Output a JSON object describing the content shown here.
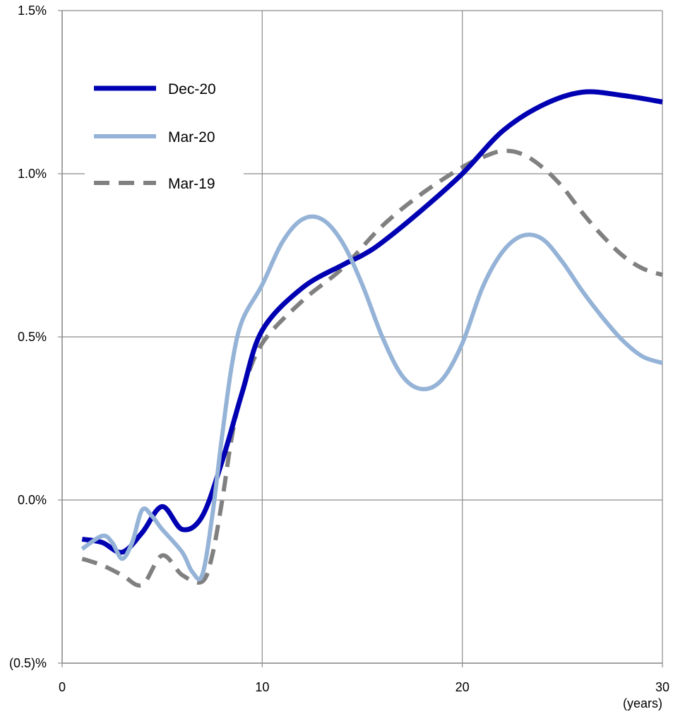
{
  "chart_data": {
    "type": "line",
    "title": "",
    "xlabel": "(years)",
    "ylabel": "",
    "xlim": [
      0,
      30
    ],
    "ylim": [
      -0.5,
      1.5
    ],
    "x_ticks": [
      0,
      10,
      20,
      30
    ],
    "x_tick_labels": [
      "0",
      "10",
      "20",
      "30"
    ],
    "y_ticks": [
      1.5,
      1.0,
      0.5,
      0.0,
      -0.5
    ],
    "y_tick_labels": [
      "1.5%",
      "1.0%",
      "0.5%",
      "0.0%",
      "(0.5)%"
    ],
    "grid": true,
    "legend_position": "top-left",
    "series": [
      {
        "name": "Dec-20",
        "color": "#0000b3",
        "line_style": "solid",
        "x": [
          1,
          2,
          3,
          4,
          5,
          6,
          7,
          8,
          9,
          10,
          12,
          14,
          15,
          16,
          18,
          20,
          22,
          24,
          26,
          28,
          30
        ],
        "y": [
          -0.12,
          -0.13,
          -0.16,
          -0.1,
          -0.02,
          -0.09,
          -0.05,
          0.12,
          0.33,
          0.52,
          0.65,
          0.72,
          0.75,
          0.79,
          0.89,
          1.0,
          1.13,
          1.21,
          1.25,
          1.24,
          1.22
        ]
      },
      {
        "name": "Mar-20",
        "color": "#95b3d7",
        "line_style": "solid",
        "x": [
          1,
          2,
          2.5,
          3,
          3.5,
          4,
          4.5,
          5,
          6,
          6.5,
          7,
          7.5,
          8,
          8.5,
          9,
          10,
          11,
          12,
          13,
          14,
          15,
          16,
          17,
          18,
          19,
          20,
          21,
          22,
          23,
          24,
          25,
          26,
          27,
          28,
          29,
          30
        ],
        "y": [
          -0.15,
          -0.11,
          -0.13,
          -0.18,
          -0.13,
          -0.03,
          -0.05,
          -0.09,
          -0.16,
          -0.22,
          -0.23,
          -0.05,
          0.2,
          0.42,
          0.55,
          0.66,
          0.79,
          0.86,
          0.86,
          0.79,
          0.66,
          0.5,
          0.38,
          0.34,
          0.37,
          0.48,
          0.65,
          0.76,
          0.81,
          0.8,
          0.73,
          0.64,
          0.56,
          0.49,
          0.44,
          0.42
        ]
      },
      {
        "name": "Mar-19",
        "color": "#808080",
        "line_style": "dashed",
        "x": [
          1,
          2,
          3,
          4,
          5,
          6,
          7,
          7.5,
          8,
          8.5,
          9,
          10,
          12,
          14,
          16,
          18,
          20,
          21,
          22,
          23,
          24,
          25,
          26,
          27,
          28,
          29,
          30
        ],
        "y": [
          -0.18,
          -0.2,
          -0.23,
          -0.26,
          -0.17,
          -0.23,
          -0.25,
          -0.17,
          0.0,
          0.2,
          0.33,
          0.48,
          0.61,
          0.71,
          0.84,
          0.94,
          1.02,
          1.05,
          1.07,
          1.06,
          1.02,
          0.96,
          0.88,
          0.81,
          0.75,
          0.71,
          0.69
        ]
      }
    ]
  }
}
